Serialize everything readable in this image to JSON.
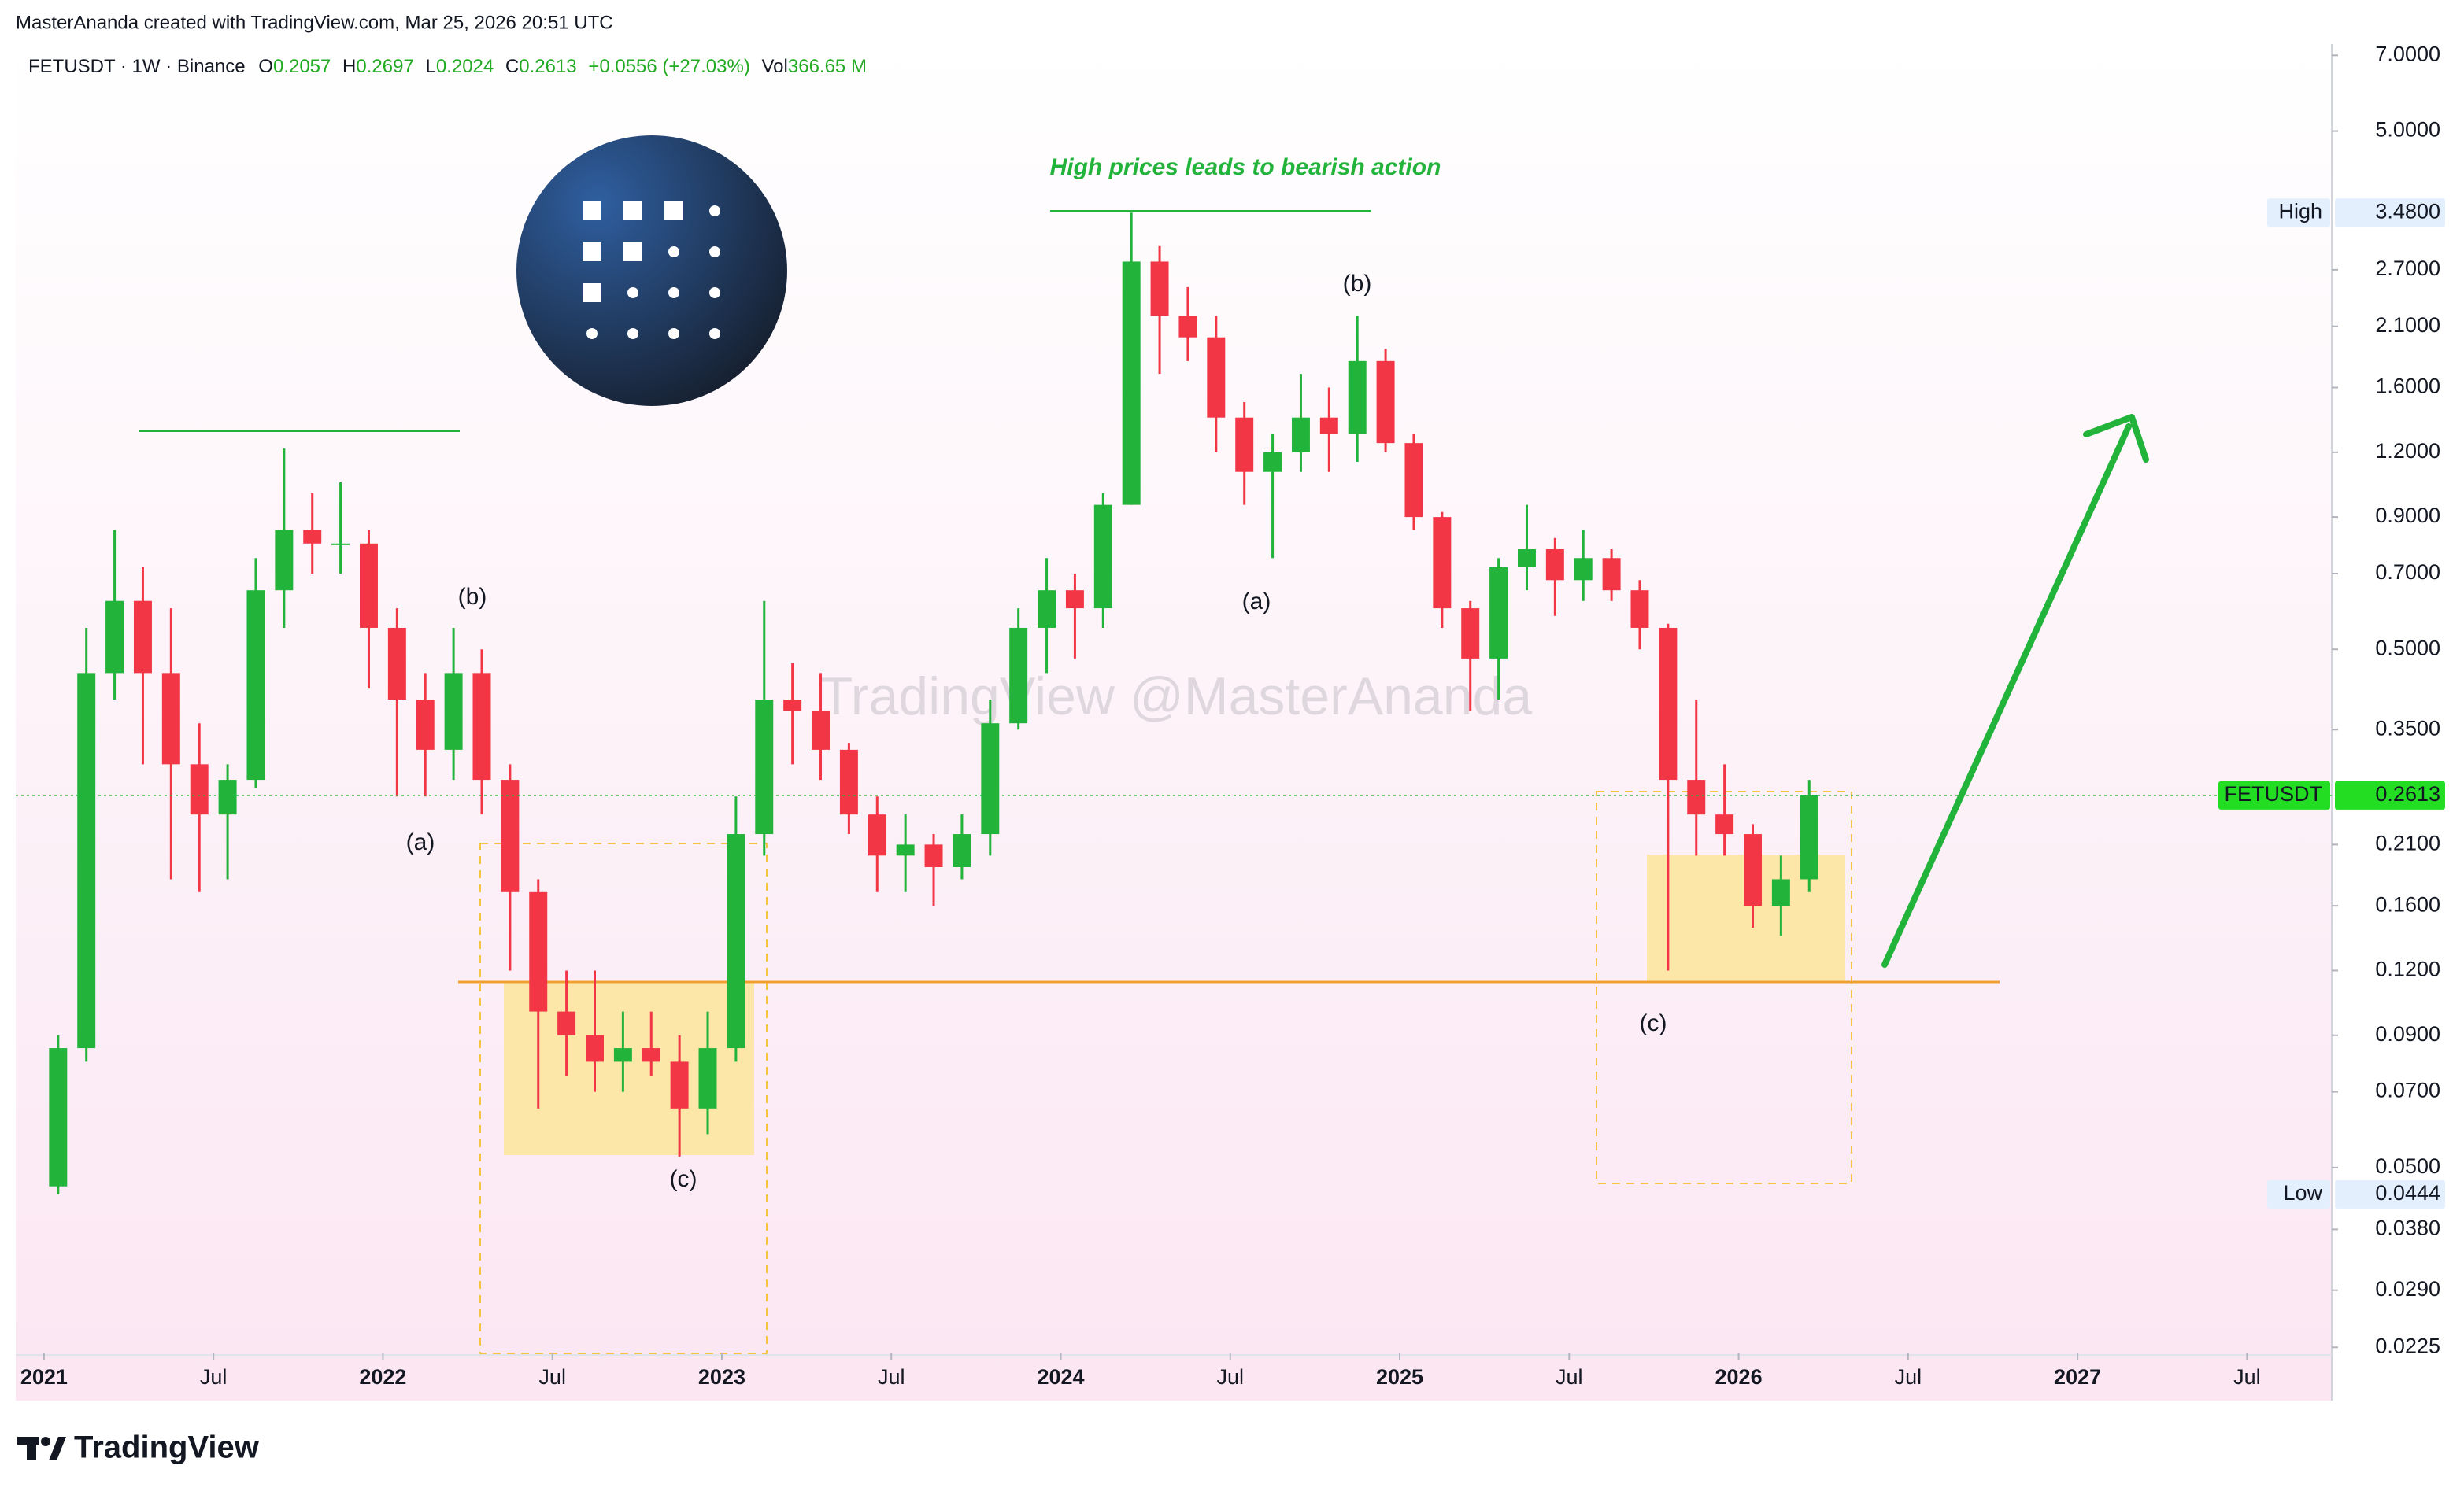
{
  "header": {
    "attribution": "MasterAnanda created with TradingView.com, Mar 25, 2026 20:51 UTC"
  },
  "chart_data": {
    "type": "candlestick",
    "symbol": "FETUSDT · 1W · Binance",
    "legend": {
      "o_label": "O",
      "open": 0.2057,
      "h_label": "H",
      "high": 0.2697,
      "l_label": "L",
      "low": 0.2024,
      "c_label": "C",
      "close": 0.2613,
      "change": "+0.0556 (+27.03%)",
      "vol_label": "Vol",
      "volume": "366.65 M"
    },
    "x": [
      "2021-01",
      "2021-02",
      "2021-03",
      "2021-04",
      "2021-05",
      "2021-06",
      "2021-07",
      "2021-08",
      "2021-09",
      "2021-10",
      "2021-11",
      "2021-12",
      "2022-01",
      "2022-02",
      "2022-03",
      "2022-04",
      "2022-05",
      "2022-06",
      "2022-07",
      "2022-08",
      "2022-09",
      "2022-10",
      "2022-11",
      "2022-12",
      "2023-01",
      "2023-02",
      "2023-03",
      "2023-04",
      "2023-05",
      "2023-06",
      "2023-07",
      "2023-08",
      "2023-09",
      "2023-10",
      "2023-11",
      "2023-12",
      "2024-01",
      "2024-02",
      "2024-03",
      "2024-04",
      "2024-05",
      "2024-06",
      "2024-07",
      "2024-08",
      "2024-09",
      "2024-10",
      "2024-11",
      "2024-12",
      "2025-01",
      "2025-02",
      "2025-03",
      "2025-04",
      "2025-05",
      "2025-06",
      "2025-07",
      "2025-08",
      "2025-09",
      "2025-10",
      "2025-11",
      "2025-12",
      "2026-01",
      "2026-02",
      "2026-03"
    ],
    "open": [
      0.046,
      0.085,
      0.45,
      0.62,
      0.45,
      0.3,
      0.24,
      0.28,
      0.65,
      0.85,
      0.8,
      0.8,
      0.55,
      0.4,
      0.32,
      0.45,
      0.28,
      0.17,
      0.1,
      0.09,
      0.08,
      0.085,
      0.08,
      0.065,
      0.085,
      0.22,
      0.4,
      0.38,
      0.32,
      0.24,
      0.2,
      0.21,
      0.19,
      0.22,
      0.36,
      0.55,
      0.65,
      0.6,
      0.95,
      2.8,
      2.2,
      2.0,
      1.4,
      1.1,
      1.2,
      1.4,
      1.3,
      1.8,
      1.25,
      0.9,
      0.6,
      0.48,
      0.72,
      0.78,
      0.68,
      0.75,
      0.65,
      0.55,
      0.28,
      0.24,
      0.22,
      0.16,
      0.18
    ],
    "high": [
      0.09,
      0.55,
      0.85,
      0.72,
      0.6,
      0.36,
      0.3,
      0.75,
      1.22,
      1.0,
      1.05,
      0.85,
      0.6,
      0.45,
      0.55,
      0.5,
      0.3,
      0.18,
      0.12,
      0.12,
      0.1,
      0.1,
      0.09,
      0.1,
      0.26,
      0.62,
      0.47,
      0.45,
      0.33,
      0.26,
      0.24,
      0.22,
      0.24,
      0.4,
      0.6,
      0.75,
      0.7,
      1.0,
      3.48,
      3.0,
      2.5,
      2.2,
      1.5,
      1.3,
      1.7,
      1.6,
      2.2,
      1.9,
      1.3,
      0.92,
      0.62,
      0.75,
      0.95,
      0.82,
      0.85,
      0.78,
      0.68,
      0.56,
      0.4,
      0.3,
      0.23,
      0.2,
      0.28
    ],
    "low": [
      0.0444,
      0.08,
      0.4,
      0.3,
      0.18,
      0.17,
      0.18,
      0.27,
      0.55,
      0.7,
      0.7,
      0.42,
      0.26,
      0.26,
      0.28,
      0.24,
      0.12,
      0.065,
      0.075,
      0.07,
      0.07,
      0.075,
      0.0525,
      0.058,
      0.08,
      0.2,
      0.3,
      0.28,
      0.22,
      0.17,
      0.17,
      0.16,
      0.18,
      0.2,
      0.35,
      0.45,
      0.48,
      0.55,
      0.95,
      1.7,
      1.8,
      1.2,
      0.95,
      0.75,
      1.1,
      1.1,
      1.15,
      1.2,
      0.85,
      0.55,
      0.38,
      0.4,
      0.65,
      0.58,
      0.62,
      0.62,
      0.5,
      0.12,
      0.2,
      0.2,
      0.145,
      0.14,
      0.17
    ],
    "close": [
      0.085,
      0.45,
      0.62,
      0.45,
      0.3,
      0.24,
      0.28,
      0.65,
      0.85,
      0.8,
      0.8,
      0.55,
      0.4,
      0.32,
      0.45,
      0.28,
      0.17,
      0.1,
      0.09,
      0.08,
      0.085,
      0.08,
      0.065,
      0.085,
      0.22,
      0.4,
      0.38,
      0.32,
      0.24,
      0.2,
      0.21,
      0.19,
      0.22,
      0.36,
      0.55,
      0.65,
      0.6,
      0.95,
      2.8,
      2.2,
      2.0,
      1.4,
      1.1,
      1.2,
      1.4,
      1.3,
      1.8,
      1.25,
      0.9,
      0.6,
      0.48,
      0.72,
      0.78,
      0.68,
      0.75,
      0.65,
      0.55,
      0.28,
      0.24,
      0.22,
      0.16,
      0.18,
      0.2613
    ],
    "up_color": "#22b33a",
    "down_color": "#f23645",
    "log_scale": true,
    "ylim": [
      0.0219,
      7.36
    ],
    "yticks": [
      {
        "value": 7,
        "label": "7.0000"
      },
      {
        "value": 5,
        "label": "5.0000"
      },
      {
        "value": 2.7,
        "label": "2.7000"
      },
      {
        "value": 2.1,
        "label": "2.1000"
      },
      {
        "value": 1.6,
        "label": "1.6000"
      },
      {
        "value": 1.2,
        "label": "1.2000"
      },
      {
        "value": 0.9,
        "label": "0.9000"
      },
      {
        "value": 0.7,
        "label": "0.7000"
      },
      {
        "value": 0.5,
        "label": "0.5000"
      },
      {
        "value": 0.35,
        "label": "0.3500"
      },
      {
        "value": 0.21,
        "label": "0.2100"
      },
      {
        "value": 0.16,
        "label": "0.1600"
      },
      {
        "value": 0.12,
        "label": "0.1200"
      },
      {
        "value": 0.09,
        "label": "0.0900"
      },
      {
        "value": 0.07,
        "label": "0.0700"
      },
      {
        "value": 0.05,
        "label": "0.0500"
      },
      {
        "value": 0.038,
        "label": "0.0380"
      },
      {
        "value": 0.029,
        "label": "0.0290"
      },
      0.0225
    ],
    "xlim": [
      "2020-12",
      "2027-10"
    ],
    "xticks": [
      {
        "value": "2021-01",
        "label": "2021"
      },
      {
        "value": "2021-07",
        "label": "Jul"
      },
      {
        "value": "2022-01",
        "label": "2022"
      },
      {
        "value": "2022-07",
        "label": "Jul"
      },
      {
        "value": "2023-01",
        "label": "2023"
      },
      {
        "value": "2023-07",
        "label": "Jul"
      },
      {
        "value": "2024-01",
        "label": "2024"
      },
      {
        "value": "2024-07",
        "label": "Jul"
      },
      {
        "value": "2025-01",
        "label": "2025"
      },
      {
        "value": "2025-07",
        "label": "Jul"
      },
      {
        "value": "2026-01",
        "label": "2026"
      },
      {
        "value": "2026-07",
        "label": "Jul"
      },
      {
        "value": "2027-01",
        "label": "2027"
      },
      {
        "value": "2027-07",
        "label": "Jul"
      }
    ],
    "badges": [
      {
        "name": "High",
        "price": {
          "value": 3.48,
          "label": "3.4800"
        }
      },
      {
        "name": "FETUSDT",
        "price": 0.2613
      },
      {
        "name": "Low",
        "price": 0.0444
      }
    ],
    "annotations": [
      "High prices leads to bearish action",
      "(b)",
      "(a)",
      "(c)",
      "(a)",
      "(b)",
      "(c)"
    ],
    "watermark": "TradingView @MasterAnanda"
  },
  "footer": {
    "brand": "TradingView"
  }
}
